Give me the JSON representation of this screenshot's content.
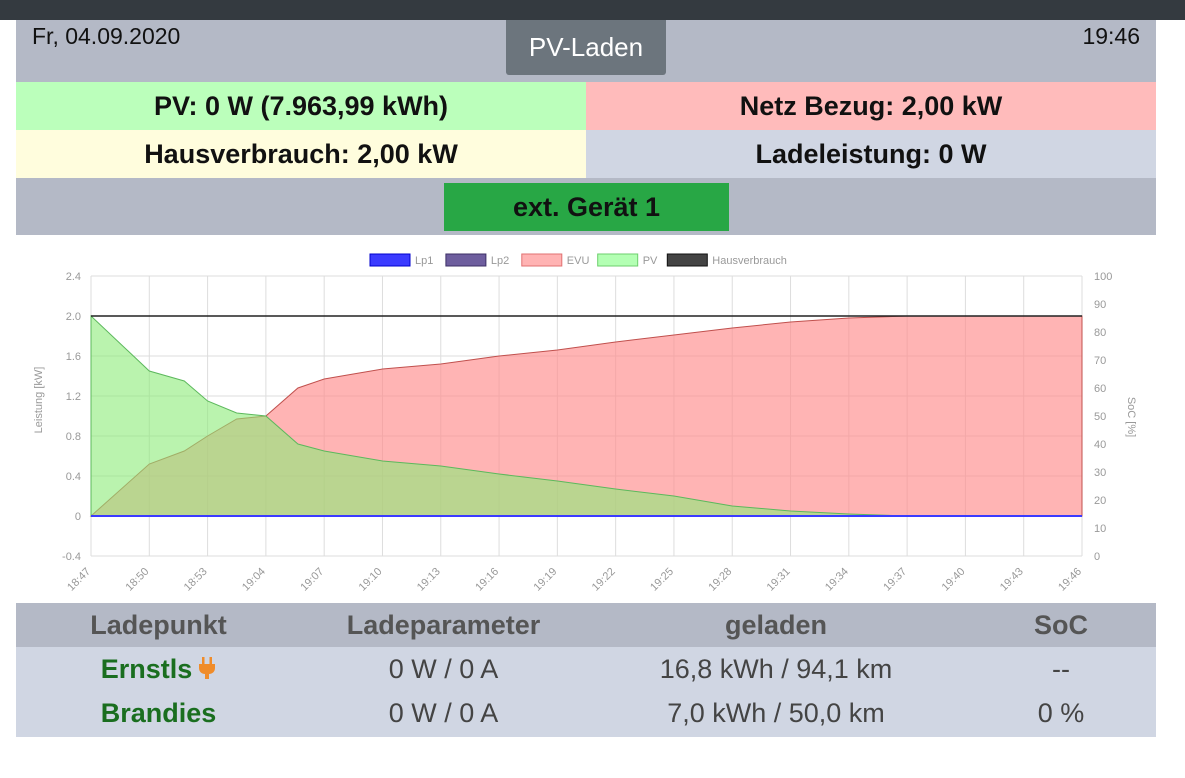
{
  "header": {
    "date": "Fr, 04.09.2020",
    "mode": "PV-Laden",
    "time": "19:46"
  },
  "stats": {
    "pv": "PV: 0 W (7.963,99 kWh)",
    "grid": "Netz Bezug: 2,00 kW",
    "house": "Hausverbrauch: 2,00 kW",
    "charge": "Ladeleistung: 0 W"
  },
  "ext_device": {
    "label": "ext. Gerät 1"
  },
  "colors": {
    "pv_bg": "#bbffbb",
    "grid_bg": "#ffbbbb",
    "house_bg": "#fffddd",
    "charge_bg": "#d0d6e3",
    "ext_btn": "#28a745",
    "lp_name": "#1a6e1f",
    "plug": "#f08c2a"
  },
  "chart_data": {
    "type": "area",
    "legend": [
      "Lp1",
      "Lp2",
      "EVU",
      "PV",
      "Hausverbrauch"
    ],
    "legend_position": "top",
    "series_colors": {
      "Lp1": "#3b3bff",
      "Lp2": "#6e5e9e",
      "EVU": "#ffb3b3",
      "PV": "#b3ffb3",
      "Hausverbrauch": "#444444"
    },
    "ylabel_left": "Leistung [kW]",
    "ylabel_right": "SoC [%]",
    "y_ticks_left": [
      "2.4",
      "2.0",
      "1.6",
      "1.2",
      "0.8",
      "0.4",
      "0",
      "-0.4"
    ],
    "y_ticks_right": [
      "100",
      "90",
      "80",
      "70",
      "60",
      "50",
      "40",
      "30",
      "20",
      "10",
      "0"
    ],
    "x_ticks": [
      "18:47",
      "18:50",
      "18:53",
      "19:04",
      "19:07",
      "19:10",
      "19:13",
      "19:16",
      "19:19",
      "19:22",
      "19:25",
      "19:28",
      "19:31",
      "19:34",
      "19:37",
      "19:40",
      "19:43",
      "19:46"
    ],
    "ylim_left": [
      -0.4,
      2.4
    ],
    "ylim_right": [
      0,
      100
    ],
    "grid": true,
    "x_index": [
      0,
      1,
      1.6,
      2,
      2.5,
      3,
      3.55,
      4,
      4.5,
      5,
      6,
      7,
      8,
      9,
      10,
      11,
      12,
      13,
      14,
      15,
      16,
      17
    ],
    "series": [
      {
        "name": "Hausverbrauch",
        "values": [
          2.0,
          2.0,
          2.0,
          2.0,
          2.0,
          2.0,
          2.0,
          2.0,
          2.0,
          2.0,
          2.0,
          2.0,
          2.0,
          2.0,
          2.0,
          2.0,
          2.0,
          2.0,
          2.0,
          2.0,
          2.0,
          2.0
        ]
      },
      {
        "name": "PV",
        "values": [
          2.0,
          1.45,
          1.35,
          1.15,
          1.03,
          1.0,
          0.72,
          0.65,
          0.6,
          0.55,
          0.5,
          0.42,
          0.35,
          0.27,
          0.2,
          0.1,
          0.05,
          0.02,
          0.0,
          0.0,
          0.0,
          0.0
        ]
      },
      {
        "name": "EVU",
        "values": [
          0.0,
          0.52,
          0.65,
          0.8,
          0.97,
          1.0,
          1.28,
          1.37,
          1.42,
          1.47,
          1.52,
          1.6,
          1.66,
          1.74,
          1.81,
          1.88,
          1.94,
          1.98,
          2.0,
          2.0,
          2.0,
          2.0
        ]
      },
      {
        "name": "Lp1",
        "values": [
          0.0,
          0.0,
          0.0,
          0.0,
          0.0,
          0.0,
          0.0,
          0.0,
          0.0,
          0.0,
          0.0,
          0.0,
          0.0,
          0.0,
          0.0,
          0.0,
          0.0,
          0.0,
          0.0,
          0.0,
          0.0,
          0.0
        ]
      }
    ]
  },
  "table": {
    "headers": [
      "Ladepunkt",
      "Ladeparameter",
      "geladen",
      "SoC"
    ],
    "rows": [
      {
        "name": "Ernstls",
        "icon": "plug-icon",
        "params": "0 W / 0 A",
        "charged": "16,8 kWh / 94,1 km",
        "soc": "--"
      },
      {
        "name": "Brandies",
        "params": "0 W / 0 A",
        "charged": "7,0 kWh / 50,0 km",
        "soc": "0 %"
      }
    ]
  }
}
